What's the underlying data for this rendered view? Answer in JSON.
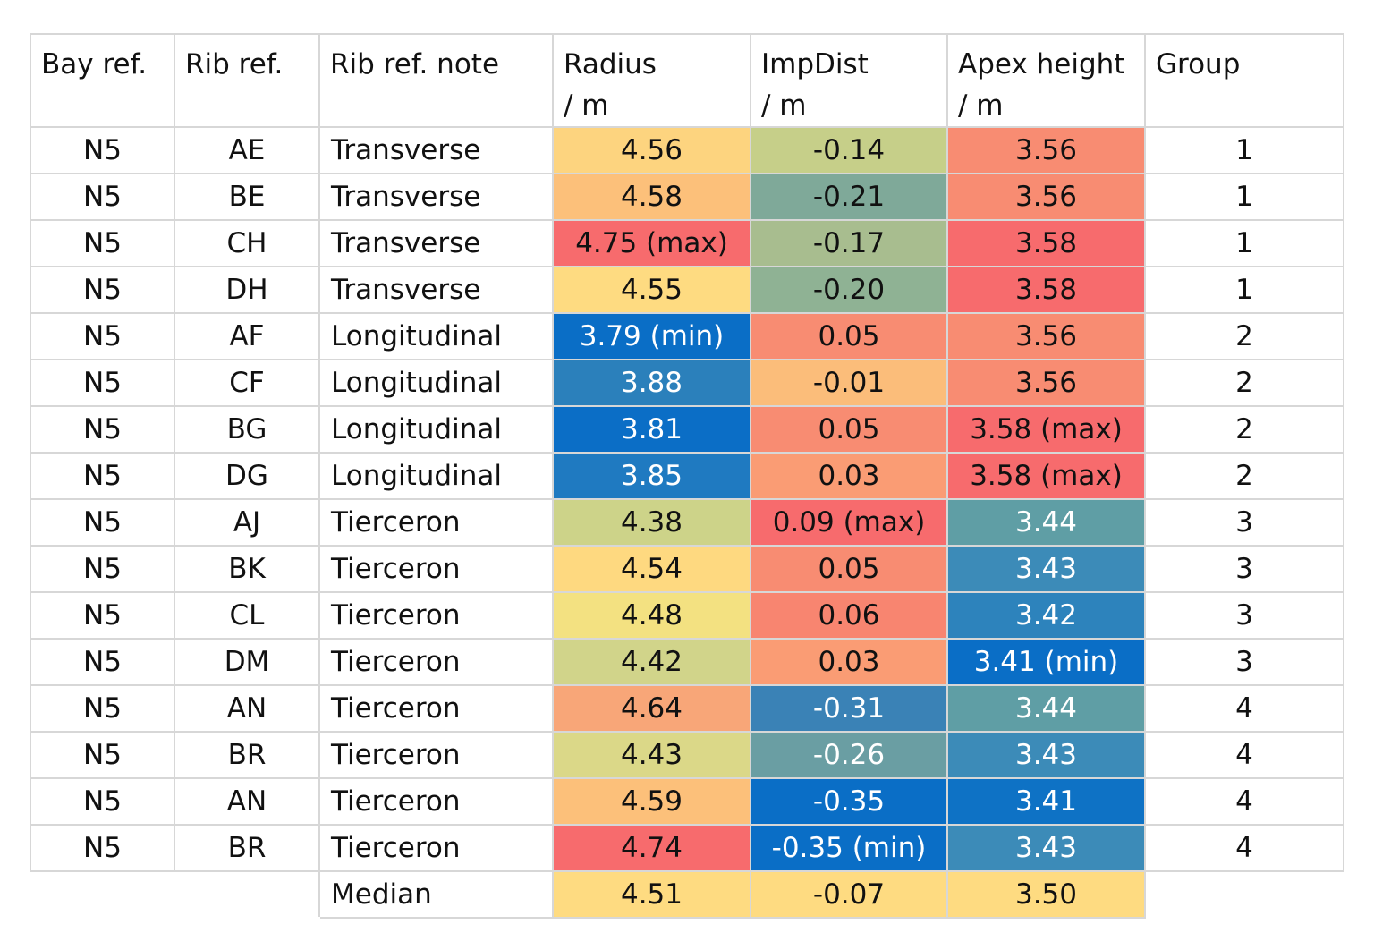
{
  "chart_data": {
    "type": "table",
    "columns": [
      {
        "key": "bay",
        "lines": [
          "Bay ref."
        ]
      },
      {
        "key": "rib",
        "lines": [
          "Rib ref."
        ]
      },
      {
        "key": "note",
        "lines": [
          "Rib ref. note"
        ]
      },
      {
        "key": "radius",
        "lines": [
          "Radius",
          "/ m"
        ]
      },
      {
        "key": "impdist",
        "lines": [
          "ImpDist",
          "/ m"
        ]
      },
      {
        "key": "apex",
        "lines": [
          "Apex height",
          "/ m"
        ]
      },
      {
        "key": "group",
        "lines": [
          "Group"
        ]
      }
    ],
    "rows": [
      {
        "bay": "N5",
        "rib": "AE",
        "note": "Transverse",
        "radius": "4.56",
        "impdist": "-0.14",
        "apex": "3.56",
        "group": "1",
        "radius_value": 4.56,
        "impdist_value": -0.14,
        "apex_value": 3.56
      },
      {
        "bay": "N5",
        "rib": "BE",
        "note": "Transverse",
        "radius": "4.58",
        "impdist": "-0.21",
        "apex": "3.56",
        "group": "1",
        "radius_value": 4.58,
        "impdist_value": -0.21,
        "apex_value": 3.56
      },
      {
        "bay": "N5",
        "rib": "CH",
        "note": "Transverse",
        "radius": "4.75 (max)",
        "impdist": "-0.17",
        "apex": "3.58",
        "group": "1",
        "radius_value": 4.75,
        "impdist_value": -0.17,
        "apex_value": 3.58
      },
      {
        "bay": "N5",
        "rib": "DH",
        "note": "Transverse",
        "radius": "4.55",
        "impdist": "-0.20",
        "apex": "3.58",
        "group": "1",
        "radius_value": 4.55,
        "impdist_value": -0.2,
        "apex_value": 3.58
      },
      {
        "bay": "N5",
        "rib": "AF",
        "note": "Longitudinal",
        "radius": "3.79 (min)",
        "impdist": "0.05",
        "apex": "3.56",
        "group": "2",
        "radius_value": 3.79,
        "impdist_value": 0.05,
        "apex_value": 3.56
      },
      {
        "bay": "N5",
        "rib": "CF",
        "note": "Longitudinal",
        "radius": "3.88",
        "impdist": "-0.01",
        "apex": "3.56",
        "group": "2",
        "radius_value": 3.88,
        "impdist_value": -0.01,
        "apex_value": 3.56
      },
      {
        "bay": "N5",
        "rib": "BG",
        "note": "Longitudinal",
        "radius": "3.81",
        "impdist": "0.05",
        "apex": "3.58 (max)",
        "group": "2",
        "radius_value": 3.81,
        "impdist_value": 0.05,
        "apex_value": 3.58
      },
      {
        "bay": "N5",
        "rib": "DG",
        "note": "Longitudinal",
        "radius": "3.85",
        "impdist": "0.03",
        "apex": "3.58 (max)",
        "group": "2",
        "radius_value": 3.85,
        "impdist_value": 0.03,
        "apex_value": 3.58
      },
      {
        "bay": "N5",
        "rib": "AJ",
        "note": "Tierceron",
        "radius": "4.38",
        "impdist": "0.09 (max)",
        "apex": "3.44",
        "group": "3",
        "radius_value": 4.38,
        "impdist_value": 0.09,
        "apex_value": 3.44
      },
      {
        "bay": "N5",
        "rib": "BK",
        "note": "Tierceron",
        "radius": "4.54",
        "impdist": "0.05",
        "apex": "3.43",
        "group": "3",
        "radius_value": 4.54,
        "impdist_value": 0.05,
        "apex_value": 3.43
      },
      {
        "bay": "N5",
        "rib": "CL",
        "note": "Tierceron",
        "radius": "4.48",
        "impdist": "0.06",
        "apex": "3.42",
        "group": "3",
        "radius_value": 4.48,
        "impdist_value": 0.06,
        "apex_value": 3.42
      },
      {
        "bay": "N5",
        "rib": "DM",
        "note": "Tierceron",
        "radius": "4.42",
        "impdist": "0.03",
        "apex": "3.41 (min)",
        "group": "3",
        "radius_value": 4.42,
        "impdist_value": 0.03,
        "apex_value": 3.41
      },
      {
        "bay": "N5",
        "rib": "AN",
        "note": "Tierceron",
        "radius": "4.64",
        "impdist": "-0.31",
        "apex": "3.44",
        "group": "4",
        "radius_value": 4.64,
        "impdist_value": -0.31,
        "apex_value": 3.44
      },
      {
        "bay": "N5",
        "rib": "BR",
        "note": "Tierceron",
        "radius": "4.43",
        "impdist": "-0.26",
        "apex": "3.43",
        "group": "4",
        "radius_value": 4.43,
        "impdist_value": -0.26,
        "apex_value": 3.43
      },
      {
        "bay": "N5",
        "rib": "AN",
        "note": "Tierceron",
        "radius": "4.59",
        "impdist": "-0.35",
        "apex": "3.41",
        "group": "4",
        "radius_value": 4.59,
        "impdist_value": -0.35,
        "apex_value": 3.41
      },
      {
        "bay": "N5",
        "rib": "BR",
        "note": "Tierceron",
        "radius": "4.74",
        "impdist": "-0.35 (min)",
        "apex": "3.43",
        "group": "4",
        "radius_value": 4.74,
        "impdist_value": -0.35,
        "apex_value": 3.43
      }
    ],
    "median": {
      "label": "Median",
      "radius": "4.51",
      "impdist": "-0.07",
      "apex": "3.50",
      "radius_value": 4.51,
      "impdist_value": -0.07,
      "apex_value": 3.5
    },
    "color_scale": {
      "low": "#0a6ec6",
      "mid": "#fedb81",
      "high": "#f76b6d"
    },
    "colored_columns": [
      "radius",
      "impdist",
      "apex"
    ],
    "cell_colors": {
      "radius": [
        "#fdd47f",
        "#fcc07a",
        "#f76b6d",
        "#fedb81",
        "#0a6ec6",
        "#2b80bb",
        "#0b6ec6",
        "#1f7ac1",
        "#cdd389",
        "#fed980",
        "#f3e181",
        "#d1d48a",
        "#f8a678",
        "#dbd888",
        "#fcc07a",
        "#f76b6d",
        "#fedb81"
      ],
      "impdist": [
        "#c6cf89",
        "#7fa999",
        "#a8bd8f",
        "#8fb294",
        "#f88c72",
        "#fbbd7a",
        "#f88c72",
        "#fa9c74",
        "#f76b6d",
        "#f88c72",
        "#f88570",
        "#fa9c74",
        "#3a82b6",
        "#6a9ea3",
        "#0a6ec6",
        "#0a6ec6",
        "#fedb81"
      ],
      "apex": [
        "#f88c72",
        "#f88c72",
        "#f76b6d",
        "#f76b6d",
        "#f88c72",
        "#f88c72",
        "#f76b6d",
        "#f76b6d",
        "#5f9ea5",
        "#3c8bb8",
        "#2d83bc",
        "#0a6ec6",
        "#5f9ea5",
        "#3c8bb8",
        "#0e72c5",
        "#3c8bb8",
        "#fedb81"
      ]
    },
    "light_text_cells": {
      "radius": [
        4,
        5,
        6,
        7
      ],
      "impdist": [
        12,
        13,
        14,
        15
      ],
      "apex": [
        8,
        9,
        10,
        11,
        12,
        13,
        14,
        15
      ]
    }
  }
}
